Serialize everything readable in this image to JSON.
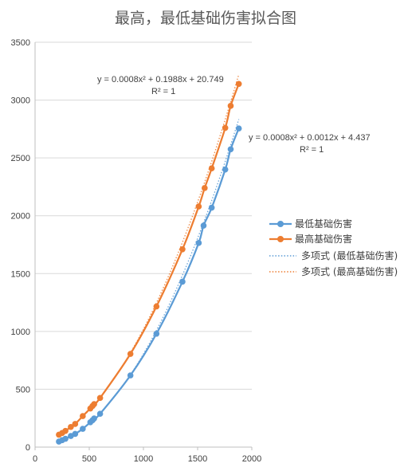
{
  "chart_data": {
    "type": "scatter",
    "title": "最高，最低基础伤害拟合图",
    "xlabel": "",
    "ylabel": "",
    "xlim": [
      0,
      2000
    ],
    "ylim": [
      0,
      3500
    ],
    "x_ticks": [
      "0",
      "500",
      "1000",
      "1500",
      "2000"
    ],
    "y_ticks": [
      "0",
      "500",
      "1000",
      "1500",
      "2000",
      "2500",
      "3000",
      "3500"
    ],
    "grid": "horizontal",
    "legend_position": "right",
    "series": [
      {
        "name": "最低基础伤害",
        "color": "#5B9BD5",
        "x": [
          220,
          250,
          280,
          330,
          370,
          440,
          510,
          530,
          545,
          600,
          880,
          1120,
          1360,
          1510,
          1555,
          1630,
          1755,
          1805,
          1880
        ],
        "y": [
          48,
          60,
          72,
          96,
          114,
          158,
          215,
          232,
          248,
          288,
          620,
          980,
          1430,
          1765,
          1915,
          2070,
          2400,
          2575,
          2755
        ]
      },
      {
        "name": "最高基础伤害",
        "color": "#ED7D31",
        "x": [
          220,
          250,
          280,
          330,
          370,
          440,
          510,
          530,
          545,
          600,
          880,
          1120,
          1360,
          1510,
          1565,
          1630,
          1755,
          1805,
          1880
        ],
        "y": [
          107,
          122,
          140,
          174,
          200,
          268,
          334,
          355,
          372,
          425,
          806,
          1216,
          1710,
          2080,
          2240,
          2410,
          2760,
          2950,
          3140
        ]
      }
    ],
    "trendlines": [
      {
        "name": "多项式 (最低基础伤害)",
        "color": "#5B9BD5",
        "equation": "y = 0.0008x² + 0.0012x + 4.437",
        "r2": "R² = 1",
        "coefficients": [
          0.0008,
          0.0012,
          4.437
        ]
      },
      {
        "name": "多项式 (最高基础伤害)",
        "color": "#ED7D31",
        "equation": "y = 0.0008x² + 0.1988x + 20.749",
        "r2": "R² = 1",
        "coefficients": [
          0.0008,
          0.1988,
          20.749
        ]
      }
    ]
  }
}
